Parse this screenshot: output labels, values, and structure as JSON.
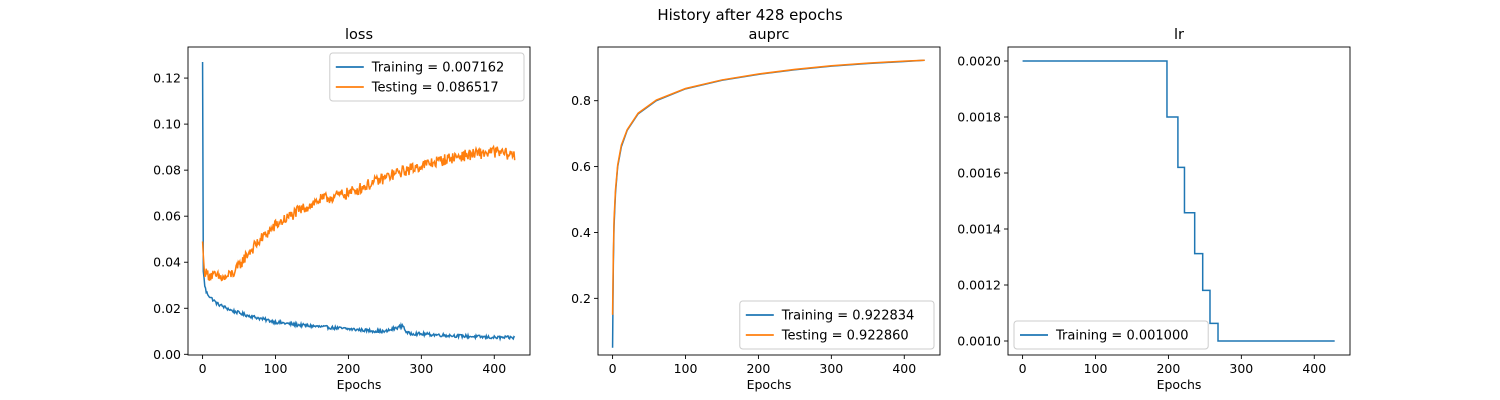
{
  "figure": {
    "suptitle": "History after 428 epochs"
  },
  "chart_data": [
    {
      "type": "line",
      "title": "loss",
      "xlabel": "Epochs",
      "ylabel": "",
      "xlim": [
        -20,
        449
      ],
      "ylim": [
        -0.0003,
        0.1335
      ],
      "xticks": [
        0,
        100,
        200,
        300,
        400
      ],
      "yticks": [
        0.0,
        0.02,
        0.04,
        0.06,
        0.08,
        0.1,
        0.12
      ],
      "ytick_decimals": 2,
      "legend": "top-right",
      "noise": 0.0,
      "series": [
        {
          "name": "Training = 0.007162",
          "color": "#1f77b4",
          "noise": 0.0007,
          "points": [
            [
              0,
              0.127
            ],
            [
              1,
              0.036
            ],
            [
              3,
              0.03
            ],
            [
              5,
              0.027
            ],
            [
              10,
              0.025
            ],
            [
              20,
              0.022
            ],
            [
              40,
              0.019
            ],
            [
              60,
              0.017
            ],
            [
              80,
              0.0155
            ],
            [
              100,
              0.014
            ],
            [
              130,
              0.0128
            ],
            [
              160,
              0.012
            ],
            [
              200,
              0.011
            ],
            [
              250,
              0.0098
            ],
            [
              275,
              0.0125
            ],
            [
              280,
              0.0092
            ],
            [
              300,
              0.0088
            ],
            [
              350,
              0.008
            ],
            [
              400,
              0.0073
            ],
            [
              428,
              0.0072
            ]
          ]
        },
        {
          "name": "Testing = 0.086517",
          "color": "#ff7f0e",
          "noise": 0.0025,
          "points": [
            [
              0,
              0.049
            ],
            [
              2,
              0.037
            ],
            [
              5,
              0.035
            ],
            [
              15,
              0.034
            ],
            [
              30,
              0.033
            ],
            [
              45,
              0.036
            ],
            [
              60,
              0.043
            ],
            [
              80,
              0.05
            ],
            [
              100,
              0.056
            ],
            [
              130,
              0.062
            ],
            [
              160,
              0.067
            ],
            [
              200,
              0.07
            ],
            [
              230,
              0.074
            ],
            [
              260,
              0.078
            ],
            [
              300,
              0.082
            ],
            [
              350,
              0.086
            ],
            [
              400,
              0.088
            ],
            [
              428,
              0.0865
            ]
          ]
        }
      ]
    },
    {
      "type": "line",
      "title": "auprc",
      "xlabel": "Epochs",
      "ylabel": "",
      "xlim": [
        -20,
        449
      ],
      "ylim": [
        0.028,
        0.963
      ],
      "xticks": [
        0,
        100,
        200,
        300,
        400
      ],
      "yticks": [
        0.2,
        0.4,
        0.6,
        0.8
      ],
      "ytick_decimals": 1,
      "legend": "bottom-right",
      "series": [
        {
          "name": "Training = 0.922834",
          "color": "#1f77b4",
          "noise": 0,
          "points": [
            [
              0,
              0.05
            ],
            [
              1,
              0.3
            ],
            [
              2,
              0.42
            ],
            [
              4,
              0.52
            ],
            [
              7,
              0.6
            ],
            [
              12,
              0.66
            ],
            [
              20,
              0.71
            ],
            [
              35,
              0.76
            ],
            [
              60,
              0.8
            ],
            [
              100,
              0.836
            ],
            [
              150,
              0.862
            ],
            [
              200,
              0.88
            ],
            [
              250,
              0.894
            ],
            [
              300,
              0.905
            ],
            [
              350,
              0.913
            ],
            [
              400,
              0.919
            ],
            [
              428,
              0.9228
            ]
          ]
        },
        {
          "name": "Testing = 0.922860",
          "color": "#ff7f0e",
          "noise": 0,
          "points": [
            [
              0,
              0.15
            ],
            [
              1,
              0.33
            ],
            [
              2,
              0.44
            ],
            [
              4,
              0.53
            ],
            [
              7,
              0.605
            ],
            [
              12,
              0.665
            ],
            [
              20,
              0.712
            ],
            [
              35,
              0.762
            ],
            [
              60,
              0.802
            ],
            [
              100,
              0.837
            ],
            [
              150,
              0.863
            ],
            [
              200,
              0.881
            ],
            [
              250,
              0.895
            ],
            [
              300,
              0.906
            ],
            [
              350,
              0.914
            ],
            [
              400,
              0.92
            ],
            [
              428,
              0.9229
            ]
          ]
        }
      ]
    },
    {
      "type": "line",
      "title": "lr",
      "xlabel": "Epochs",
      "ylabel": "",
      "xlim": [
        -20,
        449
      ],
      "ylim": [
        0.00095,
        0.00205
      ],
      "xticks": [
        0,
        100,
        200,
        300,
        400
      ],
      "yticks": [
        0.001,
        0.0012,
        0.0014,
        0.0016,
        0.0018,
        0.002
      ],
      "ytick_decimals": 4,
      "legend": "bottom-left",
      "series": [
        {
          "name": "Training = 0.001000",
          "color": "#1f77b4",
          "noise": 0,
          "points": [
            [
              0,
              0.002
            ],
            [
              198,
              0.002
            ],
            [
              198,
              0.0018
            ],
            [
              213,
              0.0018
            ],
            [
              213,
              0.00162
            ],
            [
              222,
              0.00162
            ],
            [
              222,
              0.001458
            ],
            [
              236,
              0.001458
            ],
            [
              236,
              0.001312
            ],
            [
              247,
              0.001312
            ],
            [
              247,
              0.001181
            ],
            [
              257,
              0.001181
            ],
            [
              257,
              0.001063
            ],
            [
              268,
              0.001063
            ],
            [
              268,
              0.001
            ],
            [
              428,
              0.001
            ]
          ]
        }
      ]
    }
  ]
}
